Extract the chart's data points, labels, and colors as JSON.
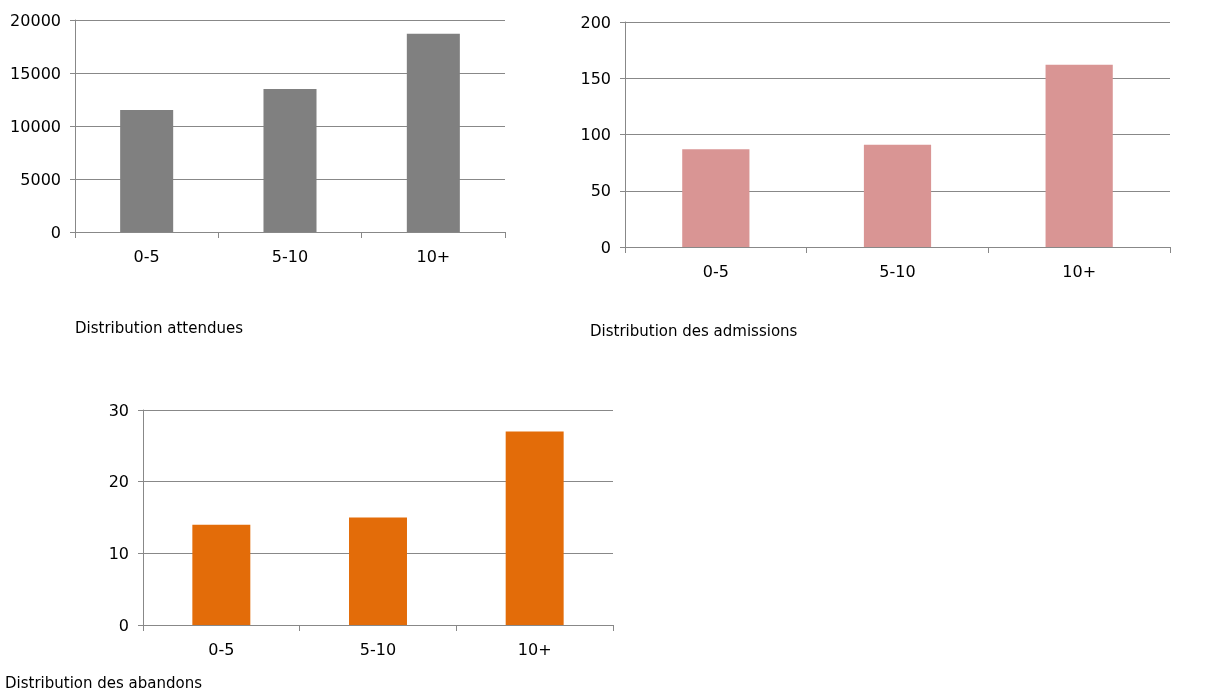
{
  "chart_data": [
    {
      "type": "bar",
      "title": "Distribution attendues",
      "categories": [
        "0-5",
        "5-10",
        "10+"
      ],
      "values": [
        11500,
        13500,
        18700
      ],
      "color": "#808080",
      "ylim": [
        0,
        20000
      ],
      "yticks": [
        0,
        5000,
        10000,
        15000,
        20000
      ],
      "grid": "y"
    },
    {
      "type": "bar",
      "title": "Distribution des admissions",
      "categories": [
        "0-5",
        "5-10",
        "10+"
      ],
      "values": [
        87,
        91,
        162
      ],
      "color": "#d99594",
      "ylim": [
        0,
        200
      ],
      "yticks": [
        0,
        50,
        100,
        150,
        200
      ],
      "grid": "y"
    },
    {
      "type": "bar",
      "title": "Distribution des abandons",
      "categories": [
        "0-5",
        "5-10",
        "10+"
      ],
      "values": [
        14,
        15,
        27
      ],
      "color": "#e36c09",
      "ylim": [
        0,
        30
      ],
      "yticks": [
        0,
        10,
        20,
        30
      ],
      "grid": "y"
    }
  ]
}
